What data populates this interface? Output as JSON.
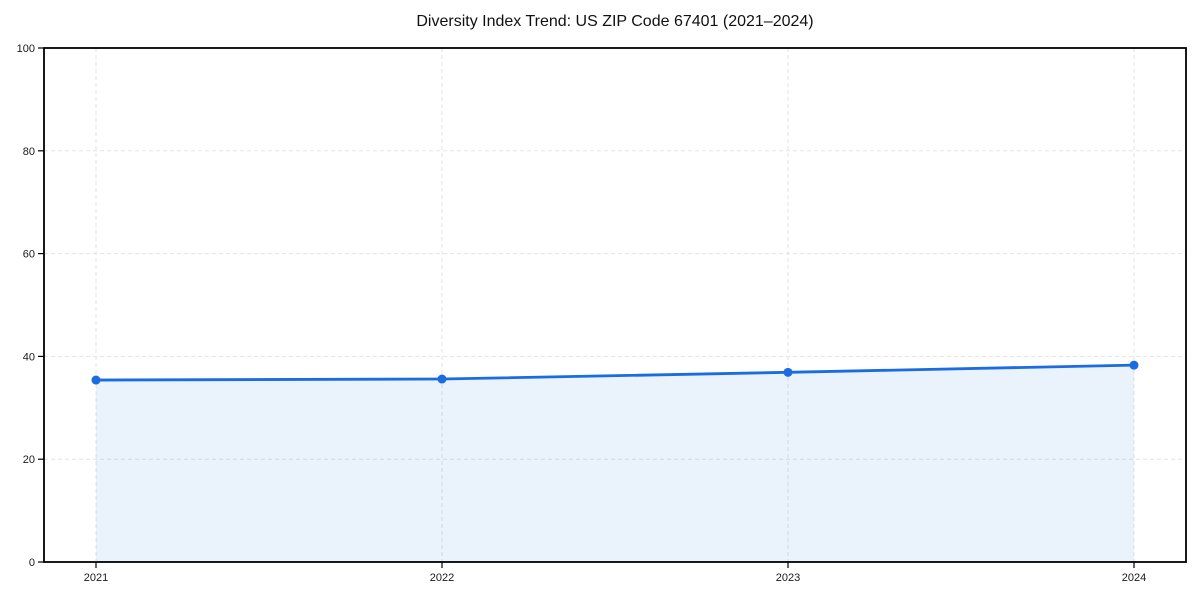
{
  "chart_data": {
    "type": "line",
    "title": "Diversity Index Trend: US ZIP Code 67401 (2021–2024)",
    "x": [
      "2021",
      "2022",
      "2023",
      "2024"
    ],
    "values": [
      35.4,
      35.6,
      36.9,
      38.3
    ],
    "xlabel": "",
    "ylabel": "",
    "ylim": [
      0,
      100
    ],
    "yticks": [
      0,
      20,
      40,
      60,
      80,
      100
    ],
    "grid": true,
    "grid_style": "dashed",
    "legend": false,
    "area_fill": true,
    "marker": "circle",
    "colors": {
      "line": "#1a6ce0",
      "marker": "#1a6ce0",
      "area_fill": "rgba(26,108,224,0.09)",
      "grid": "#e3e3e3",
      "axis": "#000000",
      "tick_text": "#1a1a1a",
      "background": "#ffffff"
    }
  }
}
